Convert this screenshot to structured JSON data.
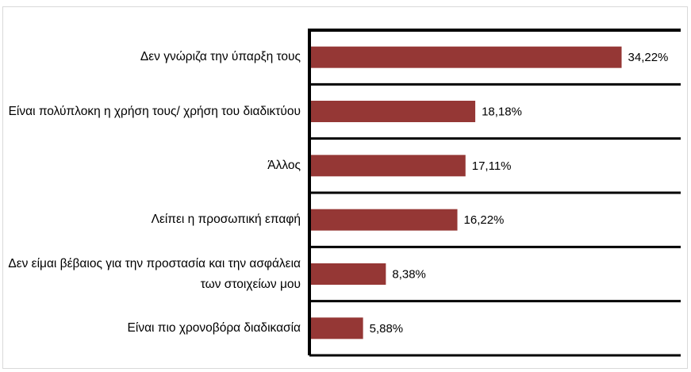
{
  "chart_data": {
    "type": "bar",
    "orientation": "horizontal",
    "title": "",
    "xlabel": "",
    "ylabel": "",
    "categories": [
      "Δεν γνώριζα την ύπαρξη τους",
      "Είναι πολύπλοκη η χρήση τους/ χρήση του διαδικτύου",
      "Άλλος",
      "Λείπει η προσωπική επαφή",
      "Δεν είμαι βέβαιος για την προστασία και την ασφάλεια των στοιχείων μου",
      "Είναι πιο χρονοβόρα διαδικασία"
    ],
    "values": [
      34.22,
      18.18,
      17.11,
      16.22,
      8.38,
      5.88
    ],
    "value_labels": [
      "34,22%",
      "18,18%",
      "17,11%",
      "16,22%",
      "8,38%",
      "5,88%"
    ],
    "xlim": [
      0,
      40
    ],
    "grid": true,
    "legend": "none",
    "bar_color": "#953735"
  }
}
